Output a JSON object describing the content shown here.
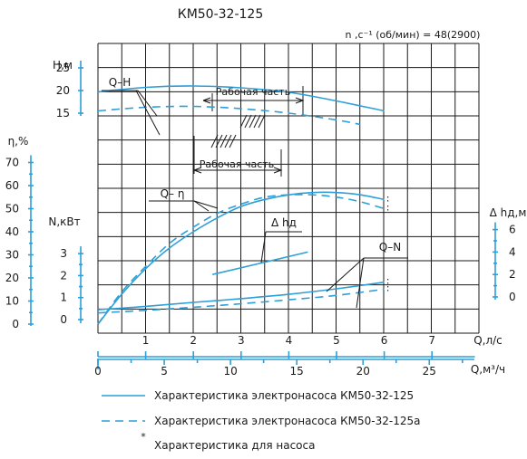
{
  "chart_data": {
    "type": "line",
    "title": "КМ50-32-125",
    "speed_label": "n ,с⁻¹ (об/мин) = 48(2900)",
    "axes": {
      "q_ls": {
        "label": "Q,л/с",
        "ticks": [
          "0",
          "1",
          "2",
          "3",
          "4",
          "5",
          "6",
          "7"
        ],
        "range": [
          0,
          7.9
        ]
      },
      "q_m3h": {
        "label": "Q,м³/ч",
        "ticks": [
          "0",
          "5",
          "10",
          "15",
          "20",
          "25"
        ],
        "range": [
          0,
          28.4
        ]
      },
      "head": {
        "label": "Н,м",
        "ticks": [
          "15",
          "20",
          "25"
        ],
        "range": [
          15,
          25
        ]
      },
      "efficiency": {
        "label": "η,%",
        "ticks": [
          "0",
          "10",
          "20",
          "30",
          "40",
          "50",
          "60",
          "70"
        ],
        "range": [
          0,
          70
        ]
      },
      "power": {
        "label": "N,кВт",
        "ticks": [
          "0",
          "1",
          "2",
          "3"
        ],
        "range": [
          0,
          3
        ]
      },
      "npsh": {
        "label": "Δ hд,м",
        "ticks": [
          "0",
          "2",
          "4",
          "6"
        ],
        "range": [
          0,
          6
        ]
      }
    },
    "curve_labels": {
      "qh": "Q–H",
      "qeta": "Q– η",
      "qn": "Q–N",
      "npsh": "Δ hд"
    },
    "work_zone_label": "Рабочая часть",
    "series": [
      {
        "curve": "Q-H",
        "pump": "КМ50-32-125",
        "axis": "head",
        "style": "solid",
        "x": [
          0,
          1,
          2,
          3,
          4,
          5,
          6
        ],
        "y": [
          19.7,
          20.7,
          21.0,
          20.6,
          19.6,
          17.7,
          15.5
        ]
      },
      {
        "curve": "Q-H",
        "pump": "КМ50-32-125а",
        "axis": "head",
        "style": "dashed",
        "x": [
          0,
          1,
          2,
          3,
          4,
          5,
          5.5
        ],
        "y": [
          15.5,
          16.3,
          16.5,
          16.0,
          15.0,
          13.5,
          12.5
        ]
      },
      {
        "curve": "Q-η",
        "pump": "КМ50-32-125",
        "axis": "efficiency",
        "style": "solid",
        "x": [
          0,
          0.5,
          1,
          1.5,
          2,
          2.5,
          3,
          3.5,
          4,
          4.5,
          5,
          5.5,
          6
        ],
        "y": [
          0,
          13,
          24,
          33,
          40,
          46,
          51,
          54,
          56,
          57,
          57,
          56,
          54
        ]
      },
      {
        "curve": "Q-η",
        "pump": "КМ50-32-125а",
        "axis": "efficiency",
        "style": "dashed",
        "x": [
          0,
          0.5,
          1,
          1.5,
          2,
          2.5,
          3,
          3.5,
          4,
          4.5,
          5,
          5.5,
          6
        ],
        "y": [
          0,
          14,
          25,
          35,
          42,
          48,
          52,
          55,
          56,
          56,
          55,
          53,
          50
        ]
      },
      {
        "curve": "Q-N",
        "pump": "КМ50-32-125",
        "axis": "power",
        "style": "solid",
        "x": [
          0,
          1,
          2,
          3,
          4,
          5,
          6
        ],
        "y": [
          0.45,
          0.6,
          0.78,
          0.95,
          1.15,
          1.4,
          1.7
        ]
      },
      {
        "curve": "Q-N",
        "pump": "КМ50-32-125а",
        "axis": "power",
        "style": "dashed",
        "x": [
          0,
          1,
          2,
          3,
          4,
          5,
          6
        ],
        "y": [
          0.3,
          0.42,
          0.56,
          0.72,
          0.9,
          1.1,
          1.38
        ]
      },
      {
        "curve": "Δhд",
        "pump": "КМ50-32-125",
        "axis": "npsh",
        "style": "solid",
        "x": [
          2.4,
          4.4
        ],
        "y": [
          2.0,
          4.0
        ]
      }
    ],
    "legend": [
      {
        "style": "solid",
        "text": "Характеристика электронасоса КМ50-32-125"
      },
      {
        "style": "dashed",
        "text": "Характеристика электронасоса КМ50-32-125а"
      },
      {
        "style": "star",
        "text": "Характеристика для насоса"
      }
    ]
  }
}
